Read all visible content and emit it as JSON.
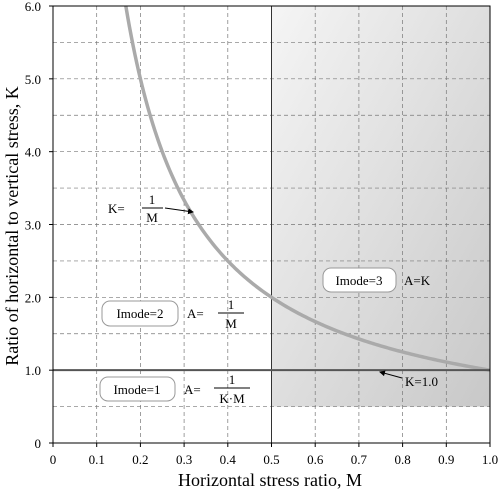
{
  "chart_data": {
    "type": "line",
    "xlabel": "Horizontal stress ratio, M",
    "ylabel": "Ratio of  horizontal to vertical stress, K",
    "xlim": [
      0,
      1.0
    ],
    "ylim": [
      0,
      6.0
    ],
    "x_ticks": [
      "0",
      "0.1",
      "0.2",
      "0.3",
      "0.4",
      "0.5",
      "0.6",
      "0.7",
      "0.8",
      "0.9",
      "1.0"
    ],
    "y_ticks": [
      "0",
      "1.0",
      "2.0",
      "3.0",
      "4.0",
      "5.0",
      "6.0"
    ],
    "grid": true,
    "series": [
      {
        "function": "K = 1/M",
        "x": [
          0.1667,
          0.18,
          0.2,
          0.22,
          0.25,
          0.3,
          0.35,
          0.4,
          0.5,
          0.6,
          0.7,
          0.8,
          0.9,
          1.0
        ],
        "y": [
          6.0,
          5.556,
          5.0,
          4.545,
          4.0,
          3.333,
          2.857,
          2.5,
          2.0,
          1.667,
          1.429,
          1.25,
          1.111,
          1.0
        ],
        "color": "#aaaaaa"
      },
      {
        "function": "K = 1.0",
        "x": [
          0,
          1.0
        ],
        "y": [
          1.0,
          1.0
        ],
        "color": "#555555"
      }
    ],
    "regions": [
      {
        "x_range": [
          0.5,
          1.0
        ],
        "y_range": [
          0.5,
          6.0
        ],
        "shading": "gradient",
        "color_light": "#f5f5f5",
        "color_dark": "#c8c8c8"
      }
    ],
    "annotations": {
      "curve_label": {
        "prefix": "K=",
        "numerator": "1",
        "denominator": "M"
      },
      "line_label": "K=1.0",
      "imode1": {
        "mode": "Imode=1",
        "eq_prefix": "A=",
        "numerator": "1",
        "denominator": "K·M"
      },
      "imode2": {
        "mode": "Imode=2",
        "eq_prefix": "A=",
        "numerator": "1",
        "denominator": "M"
      },
      "imode3": {
        "mode": "Imode=3",
        "equation": "A=K"
      }
    }
  }
}
